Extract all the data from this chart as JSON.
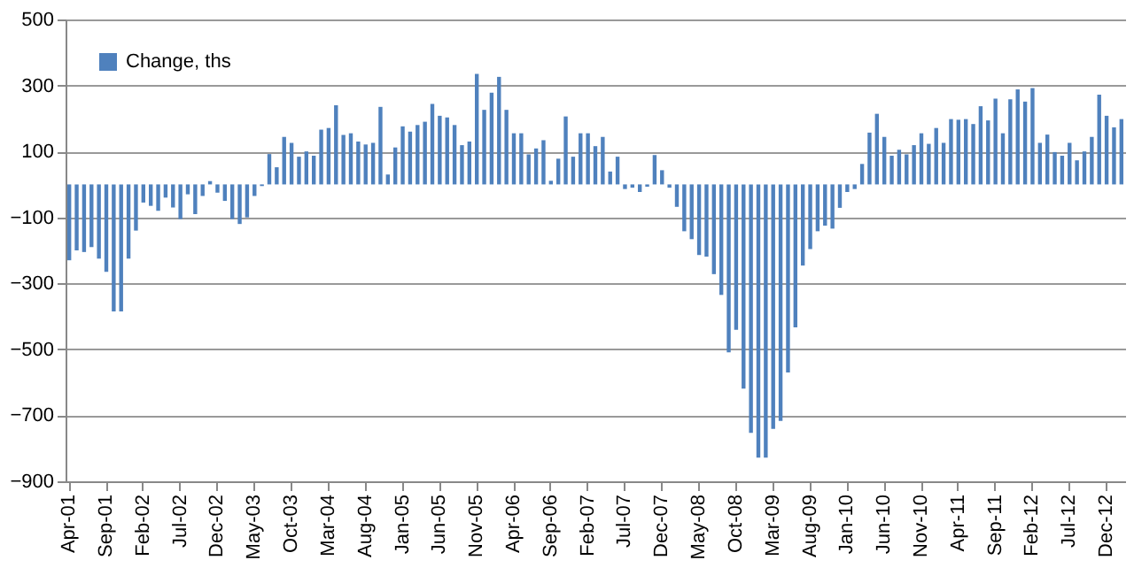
{
  "chart_data": {
    "type": "bar",
    "categories": [
      "Apr-01",
      null,
      null,
      null,
      null,
      "Sep-01",
      null,
      null,
      null,
      null,
      "Feb-02",
      null,
      null,
      null,
      null,
      "Jul-02",
      null,
      null,
      null,
      null,
      "Dec-02",
      null,
      null,
      null,
      null,
      "May-03",
      null,
      null,
      null,
      null,
      "Oct-03",
      null,
      null,
      null,
      null,
      "Mar-04",
      null,
      null,
      null,
      null,
      "Aug-04",
      null,
      null,
      null,
      null,
      "Jan-05",
      null,
      null,
      null,
      null,
      "Jun-05",
      null,
      null,
      null,
      null,
      "Nov-05",
      null,
      null,
      null,
      null,
      "Apr-06",
      null,
      null,
      null,
      null,
      "Sep-06",
      null,
      null,
      null,
      null,
      "Feb-07",
      null,
      null,
      null,
      null,
      "Jul-07",
      null,
      null,
      null,
      null,
      "Dec-07",
      null,
      null,
      null,
      null,
      "May-08",
      null,
      null,
      null,
      null,
      "Oct-08",
      null,
      null,
      null,
      null,
      "Mar-09",
      null,
      null,
      null,
      null,
      "Aug-09",
      null,
      null,
      null,
      null,
      "Jan-10",
      null,
      null,
      null,
      null,
      "Jun-10",
      null,
      null,
      null,
      null,
      "Nov-10",
      null,
      null,
      null,
      null,
      "Apr-11",
      null,
      null,
      null,
      null,
      "Sep-11",
      null,
      null,
      null,
      null,
      "Feb-12",
      null,
      null,
      null,
      null,
      "Jul-12",
      null,
      null,
      null,
      null,
      "Dec-12",
      null,
      null
    ],
    "series": [
      {
        "name": "Change, ths",
        "color": "#4f81bd",
        "values": [
          -230,
          -200,
          -205,
          -190,
          -225,
          -265,
          -385,
          -385,
          -225,
          -140,
          -55,
          -65,
          -80,
          -40,
          -70,
          -105,
          -30,
          -90,
          -35,
          10,
          -25,
          -50,
          -105,
          -120,
          -100,
          -35,
          -5,
          92,
          52,
          144,
          126,
          84,
          100,
          87,
          166,
          171,
          240,
          150,
          155,
          130,
          121,
          126,
          235,
          30,
          112,
          176,
          160,
          180,
          190,
          244,
          208,
          203,
          180,
          119,
          130,
          335,
          226,
          278,
          326,
          226,
          155,
          155,
          91,
          109,
          134,
          11,
          78,
          206,
          84,
          155,
          155,
          116,
          144,
          39,
          84,
          -14,
          -10,
          -23,
          -7,
          89,
          43,
          -10,
          -68,
          -142,
          -166,
          -214,
          -219,
          -272,
          -335,
          -509,
          -441,
          -619,
          -753,
          -828,
          -828,
          -741,
          -717,
          -570,
          -433,
          -246,
          -196,
          -142,
          -125,
          -134,
          -71,
          -23,
          -14,
          62,
          157,
          214,
          144,
          87,
          105,
          91,
          119,
          155,
          123,
          171,
          126,
          198,
          196,
          198,
          183,
          237,
          194,
          260,
          155,
          258,
          288,
          251,
          292,
          126,
          151,
          98,
          87,
          126,
          73,
          100,
          144,
          272,
          208,
          173,
          198
        ]
      }
    ],
    "ylim": [
      -900,
      500
    ],
    "yticks": [
      -900,
      -700,
      -500,
      -300,
      -100,
      100,
      300,
      500
    ],
    "grid": "y",
    "legend": "top left"
  }
}
